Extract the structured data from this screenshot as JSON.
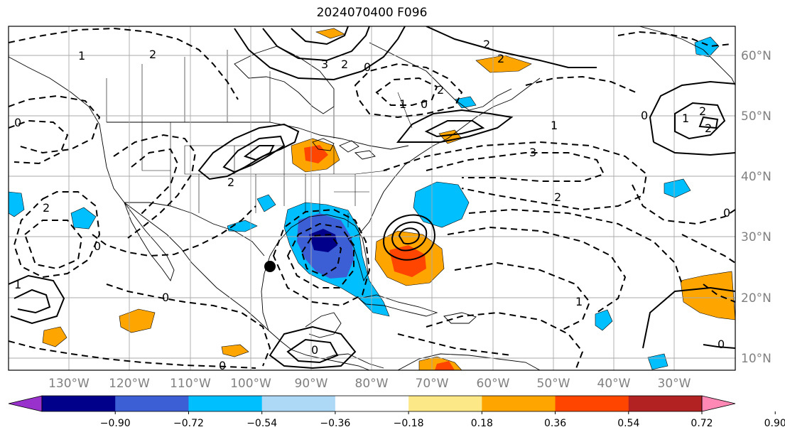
{
  "title": "2024070400 F096",
  "lat_labels": [
    "60°N",
    "50°N",
    "40°N",
    "30°N",
    "20°N",
    "10°N"
  ],
  "lon_labels": [
    "130°W",
    "120°W",
    "110°W",
    "100°W",
    "90°W",
    "80°W",
    "70°W",
    "60°W",
    "50°W",
    "40°W",
    "30°W"
  ],
  "contour_labels": [
    "1",
    "2",
    "2",
    "3",
    "2",
    "0",
    "1",
    "0",
    "2",
    "2",
    "1",
    "2",
    "3",
    "2",
    "0",
    "0",
    "0",
    "0",
    "1",
    "0",
    "1",
    "0",
    "2",
    "2",
    "0",
    "2",
    "0",
    "1"
  ],
  "colorbar": {
    "ticks": [
      "−0.90",
      "−0.72",
      "−0.54",
      "−0.36",
      "−0.18",
      "0.18",
      "0.36",
      "0.54",
      "0.72",
      "0.90"
    ],
    "colors": [
      "#9932cc",
      "#00008b",
      "#3d5fd6",
      "#00bfff",
      "#add8f6",
      "#ffffff",
      "#fde888",
      "#ffa500",
      "#ff4500",
      "#b22222",
      "#ff88b5"
    ]
  },
  "marker": "storm-center-dot"
}
